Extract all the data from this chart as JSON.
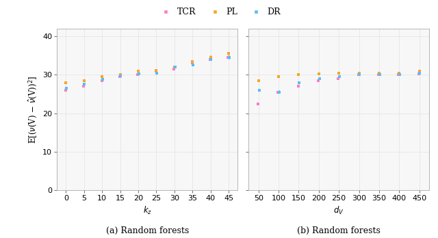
{
  "panel_a": {
    "xlabel": "k_z",
    "x": [
      0,
      5,
      10,
      15,
      20,
      25,
      30,
      35,
      40,
      45
    ],
    "TCR_y": [
      26.0,
      27.0,
      28.5,
      29.5,
      30.0,
      31.0,
      31.5,
      33.0,
      34.0,
      34.5
    ],
    "TCR_err": [
      0.25,
      0.25,
      0.25,
      0.25,
      0.25,
      0.25,
      0.35,
      0.35,
      0.35,
      0.35
    ],
    "PL_y": [
      28.0,
      28.5,
      29.5,
      30.0,
      31.0,
      31.2,
      32.0,
      33.5,
      34.5,
      35.5
    ],
    "PL_err": [
      0.25,
      0.25,
      0.25,
      0.25,
      0.25,
      0.25,
      0.35,
      0.35,
      0.45,
      0.45
    ],
    "DR_y": [
      26.5,
      27.5,
      28.8,
      29.7,
      30.2,
      30.5,
      32.0,
      32.5,
      34.0,
      34.5
    ],
    "DR_err": [
      0.25,
      0.25,
      0.25,
      0.25,
      0.25,
      0.25,
      0.35,
      0.35,
      0.45,
      0.45
    ],
    "subtitle": "(a) Random forests",
    "xlim": [
      -2.5,
      47.5
    ],
    "xticks": [
      0,
      5,
      10,
      15,
      20,
      25,
      30,
      35,
      40,
      45
    ]
  },
  "panel_b": {
    "xlabel": "d_V",
    "x": [
      50,
      100,
      150,
      200,
      250,
      300,
      350,
      400,
      450
    ],
    "TCR_y": [
      22.5,
      25.5,
      27.0,
      28.5,
      29.0,
      30.0,
      30.0,
      30.0,
      30.2
    ],
    "TCR_err": [
      0.3,
      0.3,
      0.3,
      0.3,
      0.3,
      0.3,
      0.3,
      0.3,
      0.3
    ],
    "PL_y": [
      28.5,
      29.5,
      30.0,
      30.2,
      30.5,
      30.5,
      30.5,
      30.5,
      31.0
    ],
    "PL_err": [
      0.25,
      0.25,
      0.25,
      0.25,
      0.25,
      0.25,
      0.25,
      0.25,
      0.25
    ],
    "DR_y": [
      26.0,
      25.5,
      28.0,
      29.0,
      29.5,
      30.0,
      30.0,
      30.0,
      30.5
    ],
    "DR_err": [
      0.4,
      0.4,
      0.3,
      0.3,
      0.3,
      0.3,
      0.3,
      0.3,
      0.3
    ],
    "subtitle": "(b) Random forests",
    "xlim": [
      25,
      475
    ],
    "xticks": [
      50,
      100,
      150,
      200,
      250,
      300,
      350,
      400,
      450
    ]
  },
  "ylim": [
    0,
    42
  ],
  "yticks": [
    0,
    10,
    20,
    30,
    40
  ],
  "colors": {
    "TCR": "#f77fc3",
    "PL": "#f5a623",
    "DR": "#5bbcf5"
  },
  "bg_color": "#ffffff",
  "panel_bg": "#f7f7f7",
  "grid_color": "#e8e8e8",
  "capsize": 2,
  "marker": "s",
  "markersize": 3.5,
  "elinewidth": 1.2,
  "axis_fontsize": 8.5,
  "tick_fontsize": 8,
  "legend_fontsize": 9,
  "subtitle_fontsize": 9,
  "offsets": {
    "TCR": -0.25,
    "PL": 0.0,
    "DR": 0.25
  }
}
